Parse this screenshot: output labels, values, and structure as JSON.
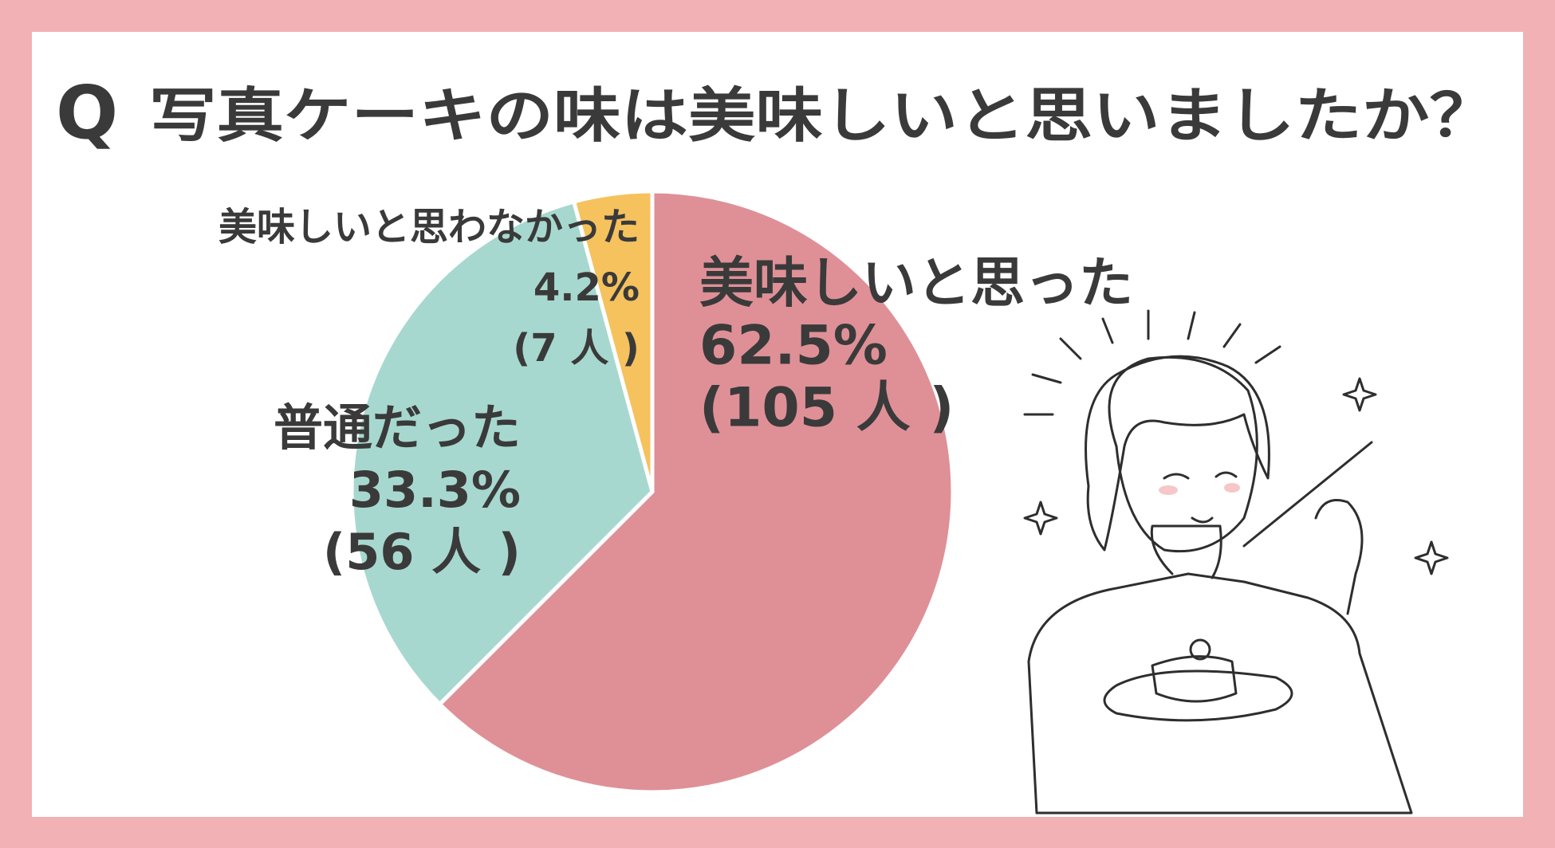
{
  "chart_data": {
    "type": "pie",
    "title_marker": "Q",
    "title": "写真ケーキの味は美味しいと思いましたか？",
    "categories": [
      "美味しいと思った",
      "普通だった",
      "美味しいと思わなかった"
    ],
    "values": [
      62.5,
      33.3,
      4.2
    ],
    "value_labels": [
      "62.5%",
      "33.3%",
      "4.2%"
    ],
    "count_labels": [
      "(105 人 )",
      "(56 人 )",
      "(7 人 )"
    ],
    "colors": [
      "#df9097",
      "#a7d8cf",
      "#f5c25e"
    ]
  }
}
